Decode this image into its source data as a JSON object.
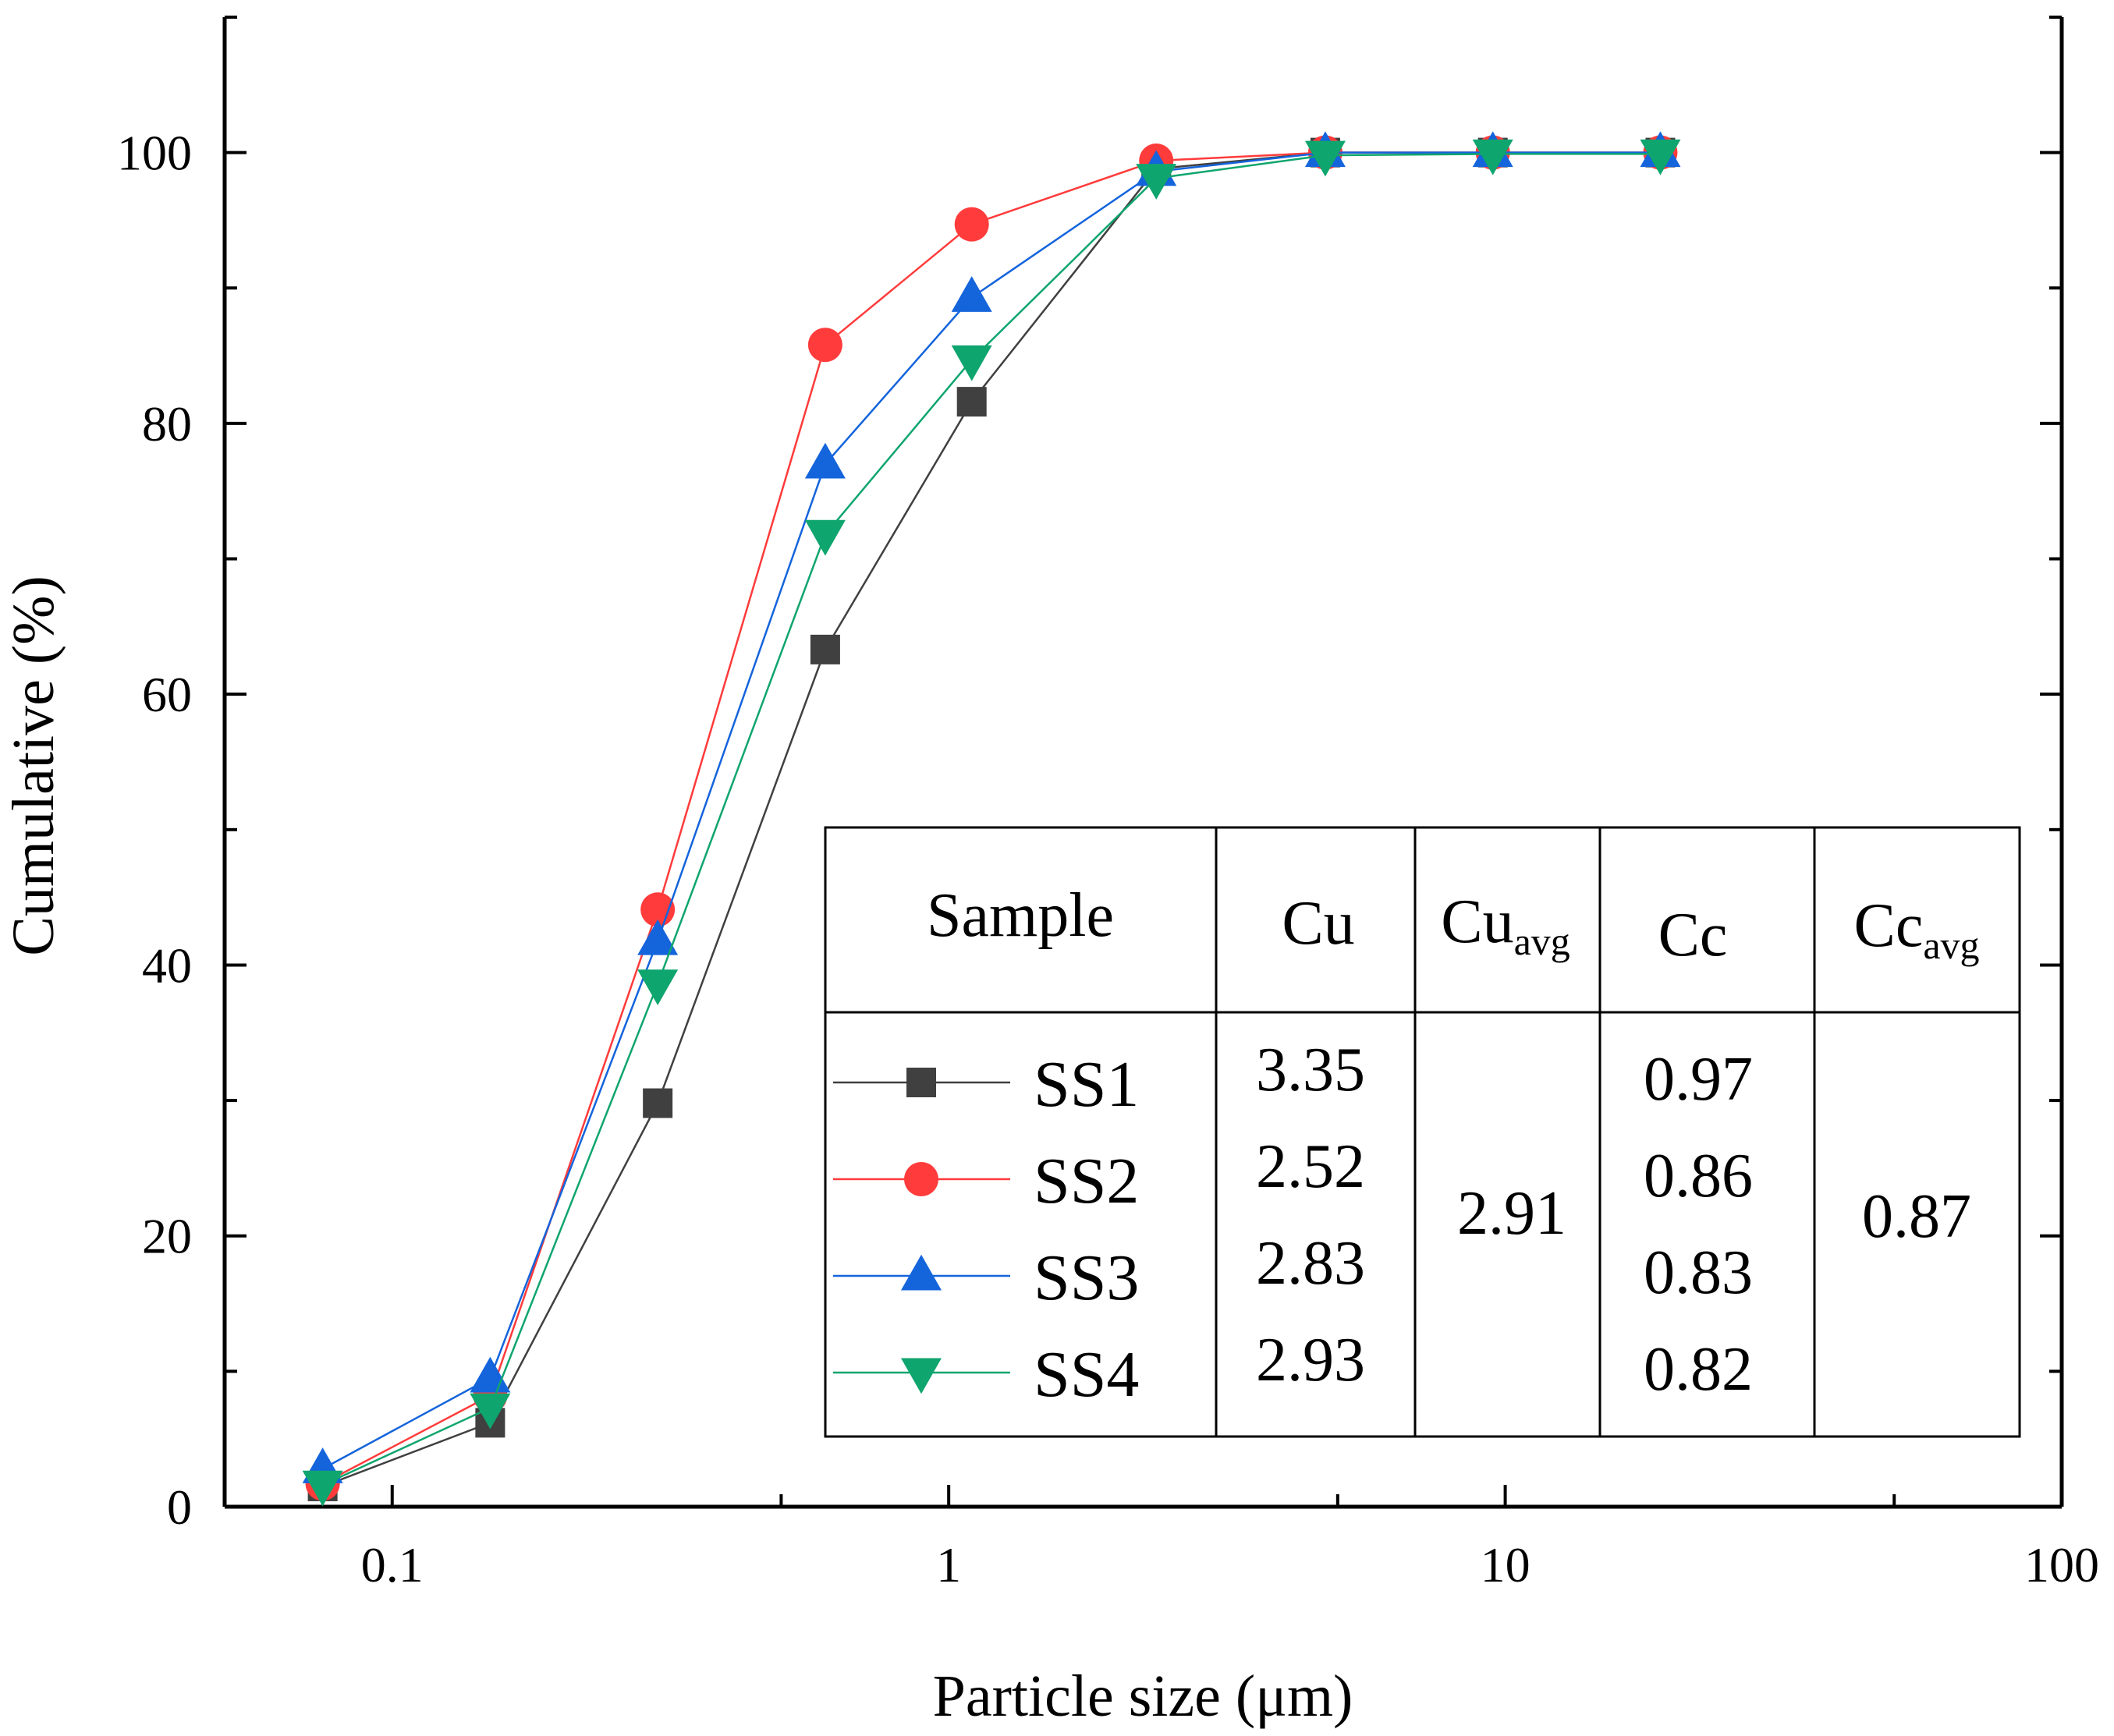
{
  "chart_data": {
    "type": "line",
    "xscale": "log",
    "xlabel": "Particle size (μm)",
    "ylabel": "Cumulative (%)",
    "xlim": [
      0.05,
      100
    ],
    "ylim": [
      0,
      110
    ],
    "xticks": [
      0.1,
      1,
      10,
      100
    ],
    "xtick_labels": [
      "0.1",
      "1",
      "10",
      "100"
    ],
    "yticks": [
      0,
      20,
      40,
      60,
      80,
      100
    ],
    "ytick_labels": [
      "0",
      "20",
      "40",
      "60",
      "80",
      "100"
    ],
    "grid": false,
    "x": [
      0.075,
      0.15,
      0.3,
      0.6,
      1.1,
      2.36,
      4.75,
      9.5,
      19
    ],
    "series": [
      {
        "name": "SS1",
        "color": "#404040",
        "marker": "square",
        "values": [
          1.5,
          6.2,
          29.8,
          63.3,
          81.6,
          98.8,
          100,
          100,
          100
        ]
      },
      {
        "name": "SS2",
        "color": "#ff3b3b",
        "marker": "circle",
        "values": [
          1.7,
          8.2,
          44.1,
          85.8,
          94.7,
          99.4,
          100,
          100,
          100
        ]
      },
      {
        "name": "SS3",
        "color": "#1464dc",
        "marker": "triangle-up",
        "values": [
          2.8,
          9.5,
          41.8,
          77.0,
          89.3,
          98.6,
          100,
          100,
          100
        ]
      },
      {
        "name": "SS4",
        "color": "#0fa56e",
        "marker": "triangle-down",
        "values": [
          1.6,
          7.3,
          38.6,
          71.8,
          84.7,
          98.1,
          99.8,
          99.9,
          99.9
        ]
      }
    ],
    "table": {
      "headers": {
        "sample": "Sample",
        "cu": "Cu",
        "cu_avg_main": "Cu",
        "cu_avg_sub": "avg",
        "cc": "Cc",
        "cc_avg_main": "Cc",
        "cc_avg_sub": "avg"
      },
      "cu": [
        "3.35",
        "2.52",
        "2.83",
        "2.93"
      ],
      "cu_avg": "2.91",
      "cc": [
        "0.97",
        "0.86",
        "0.83",
        "0.82"
      ],
      "cc_avg": "0.87"
    }
  }
}
